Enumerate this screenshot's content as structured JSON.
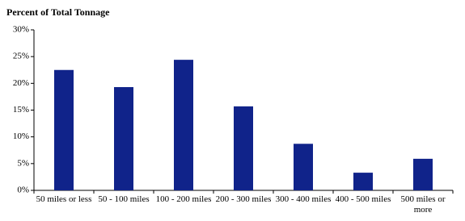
{
  "chart_data": {
    "type": "bar",
    "title": "Percent of Total Tonnage",
    "categories": [
      "50 miles or less",
      "50 - 100 miles",
      "100 - 200 miles",
      "200 - 300 miles",
      "300 - 400 miles",
      "400 - 500 miles",
      "500 miles or more"
    ],
    "values": [
      22.5,
      19.3,
      24.4,
      15.7,
      8.7,
      3.3,
      5.9
    ],
    "color": "#10238a",
    "ylim": [
      0,
      30
    ],
    "yticks": [
      {
        "value": 0,
        "label": "0%"
      },
      {
        "value": 5,
        "label": "5%"
      },
      {
        "value": 10,
        "label": "10%"
      },
      {
        "value": 15,
        "label": "15%"
      },
      {
        "value": 20,
        "label": "20%"
      },
      {
        "value": 25,
        "label": "25%"
      },
      {
        "value": 30,
        "label": "30%"
      }
    ],
    "grid": false
  }
}
